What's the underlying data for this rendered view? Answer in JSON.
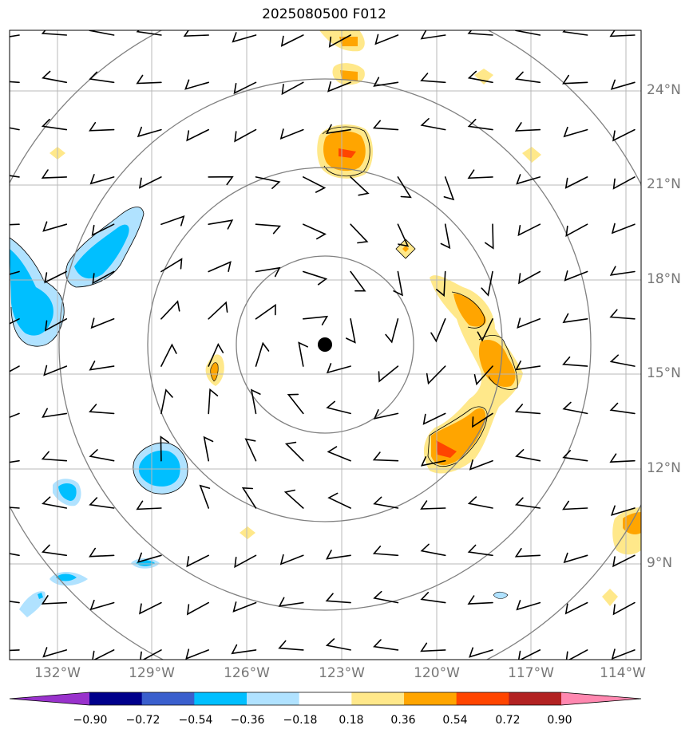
{
  "title": "2025080500 F012",
  "latitude_labels": [
    "24°N",
    "21°N",
    "18°N",
    "15°N",
    "12°N",
    "9°N"
  ],
  "longitude_labels": [
    "132°W",
    "129°W",
    "126°W",
    "123°W",
    "120°W",
    "117°W",
    "114°W"
  ],
  "colorbar": {
    "tick_labels": [
      "−0.90",
      "−0.72",
      "−0.54",
      "−0.36",
      "−0.18",
      "0.18",
      "0.36",
      "0.54",
      "0.72",
      "0.90"
    ],
    "colors": [
      "#9932cc",
      "#00008b",
      "#3a5fcd",
      "#00bfff",
      "#b0e2ff",
      "#ffffff",
      "#ffe88a",
      "#ffa500",
      "#ff4500",
      "#b22222",
      "#ff88b0"
    ]
  },
  "storm_center": {
    "lon": -123.6,
    "lat": 15.9
  },
  "range_rings_count": 4
}
